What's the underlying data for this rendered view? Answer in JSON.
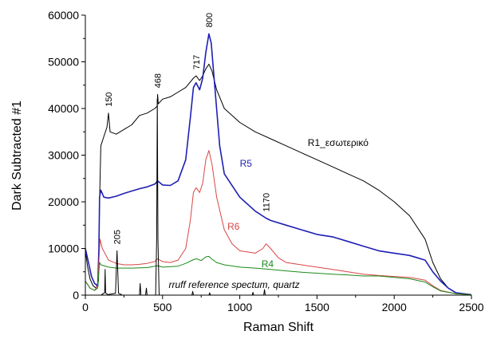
{
  "chart_data": {
    "type": "line",
    "title": "",
    "xlabel": "Raman Shift",
    "ylabel": "Dark Subtracted #1",
    "xlim": [
      0,
      2500
    ],
    "ylim": [
      0,
      60000
    ],
    "x_ticks": [
      0,
      500,
      1000,
      1500,
      2000,
      2500
    ],
    "y_ticks": [
      0,
      10000,
      20000,
      30000,
      40000,
      50000,
      60000
    ],
    "grid": false,
    "legend": "none",
    "series": [
      {
        "name": "R1_εσωτερικό",
        "color": "#000000",
        "points": [
          [
            0,
            9500
          ],
          [
            15,
            6000
          ],
          [
            30,
            3500
          ],
          [
            50,
            2000
          ],
          [
            70,
            1500
          ],
          [
            85,
            3000
          ],
          [
            92,
            20000
          ],
          [
            100,
            32000
          ],
          [
            120,
            34000
          ],
          [
            140,
            36000
          ],
          [
            150,
            39000
          ],
          [
            160,
            35000
          ],
          [
            200,
            34500
          ],
          [
            250,
            35500
          ],
          [
            300,
            36500
          ],
          [
            350,
            38500
          ],
          [
            400,
            39000
          ],
          [
            450,
            40000
          ],
          [
            465,
            40500
          ],
          [
            468,
            43000
          ],
          [
            472,
            41000
          ],
          [
            500,
            42000
          ],
          [
            550,
            42500
          ],
          [
            600,
            43500
          ],
          [
            650,
            44500
          ],
          [
            700,
            46500
          ],
          [
            717,
            47000
          ],
          [
            740,
            46000
          ],
          [
            760,
            47000
          ],
          [
            780,
            48500
          ],
          [
            800,
            49500
          ],
          [
            820,
            48000
          ],
          [
            850,
            44000
          ],
          [
            900,
            40000
          ],
          [
            1000,
            37000
          ],
          [
            1100,
            35000
          ],
          [
            1200,
            33500
          ],
          [
            1300,
            32000
          ],
          [
            1400,
            30500
          ],
          [
            1500,
            29000
          ],
          [
            1600,
            27500
          ],
          [
            1700,
            26000
          ],
          [
            1800,
            24500
          ],
          [
            1900,
            22500
          ],
          [
            2000,
            20000
          ],
          [
            2100,
            17000
          ],
          [
            2200,
            12000
          ],
          [
            2250,
            7000
          ],
          [
            2300,
            3500
          ],
          [
            2350,
            1500
          ],
          [
            2400,
            500
          ],
          [
            2450,
            200
          ],
          [
            2500,
            100
          ]
        ]
      },
      {
        "name": "R5",
        "color": "#1f1fb4",
        "points": [
          [
            0,
            10000
          ],
          [
            20,
            7000
          ],
          [
            40,
            4000
          ],
          [
            60,
            2500
          ],
          [
            80,
            2000
          ],
          [
            88,
            10000
          ],
          [
            92,
            21000
          ],
          [
            100,
            22500
          ],
          [
            120,
            21000
          ],
          [
            150,
            20800
          ],
          [
            200,
            21200
          ],
          [
            250,
            21800
          ],
          [
            300,
            22300
          ],
          [
            350,
            22800
          ],
          [
            400,
            23200
          ],
          [
            450,
            23800
          ],
          [
            468,
            24500
          ],
          [
            500,
            23600
          ],
          [
            550,
            23500
          ],
          [
            600,
            24500
          ],
          [
            650,
            29000
          ],
          [
            680,
            38000
          ],
          [
            700,
            44500
          ],
          [
            717,
            45500
          ],
          [
            740,
            44000
          ],
          [
            760,
            46500
          ],
          [
            780,
            52000
          ],
          [
            800,
            56000
          ],
          [
            815,
            54000
          ],
          [
            840,
            44000
          ],
          [
            870,
            32000
          ],
          [
            900,
            26000
          ],
          [
            1000,
            21000
          ],
          [
            1100,
            18000
          ],
          [
            1170,
            16500
          ],
          [
            1200,
            16000
          ],
          [
            1300,
            15000
          ],
          [
            1400,
            14000
          ],
          [
            1500,
            13000
          ],
          [
            1600,
            12500
          ],
          [
            1700,
            11500
          ],
          [
            1800,
            10500
          ],
          [
            1900,
            9500
          ],
          [
            2000,
            9000
          ],
          [
            2100,
            8500
          ],
          [
            2150,
            8000
          ],
          [
            2200,
            7500
          ],
          [
            2250,
            5000
          ],
          [
            2300,
            3000
          ],
          [
            2350,
            1500
          ],
          [
            2400,
            500
          ],
          [
            2500,
            100
          ]
        ]
      },
      {
        "name": "R6",
        "color": "#d94646",
        "points": [
          [
            0,
            3000
          ],
          [
            30,
            1500
          ],
          [
            60,
            1000
          ],
          [
            80,
            2000
          ],
          [
            95,
            12000
          ],
          [
            110,
            10000
          ],
          [
            150,
            7500
          ],
          [
            200,
            6800
          ],
          [
            250,
            6500
          ],
          [
            300,
            6500
          ],
          [
            350,
            6600
          ],
          [
            400,
            6800
          ],
          [
            450,
            7200
          ],
          [
            468,
            7800
          ],
          [
            500,
            7200
          ],
          [
            550,
            7000
          ],
          [
            600,
            7500
          ],
          [
            650,
            10000
          ],
          [
            680,
            16000
          ],
          [
            700,
            22000
          ],
          [
            717,
            23000
          ],
          [
            740,
            22000
          ],
          [
            760,
            24000
          ],
          [
            780,
            29000
          ],
          [
            800,
            31000
          ],
          [
            820,
            28000
          ],
          [
            850,
            21000
          ],
          [
            900,
            14000
          ],
          [
            950,
            11000
          ],
          [
            1000,
            9500
          ],
          [
            1100,
            9000
          ],
          [
            1150,
            10000
          ],
          [
            1170,
            11000
          ],
          [
            1200,
            10000
          ],
          [
            1250,
            8000
          ],
          [
            1300,
            7000
          ],
          [
            1400,
            6500
          ],
          [
            1500,
            6000
          ],
          [
            1600,
            5500
          ],
          [
            1700,
            5000
          ],
          [
            1800,
            4500
          ],
          [
            1900,
            4200
          ],
          [
            2000,
            4000
          ],
          [
            2100,
            3800
          ],
          [
            2200,
            3200
          ],
          [
            2250,
            2000
          ],
          [
            2300,
            1000
          ],
          [
            2400,
            300
          ],
          [
            2500,
            100
          ]
        ]
      },
      {
        "name": "R4",
        "color": "#1a8a1a",
        "points": [
          [
            0,
            3000
          ],
          [
            30,
            1500
          ],
          [
            60,
            1000
          ],
          [
            80,
            1500
          ],
          [
            92,
            7000
          ],
          [
            100,
            6500
          ],
          [
            150,
            6000
          ],
          [
            200,
            5800
          ],
          [
            300,
            5800
          ],
          [
            400,
            5900
          ],
          [
            468,
            6300
          ],
          [
            500,
            6000
          ],
          [
            600,
            6200
          ],
          [
            650,
            6800
          ],
          [
            700,
            7600
          ],
          [
            720,
            7800
          ],
          [
            750,
            7400
          ],
          [
            780,
            8200
          ],
          [
            800,
            8300
          ],
          [
            820,
            7700
          ],
          [
            850,
            7000
          ],
          [
            900,
            6500
          ],
          [
            1000,
            6000
          ],
          [
            1100,
            5800
          ],
          [
            1200,
            5500
          ],
          [
            1300,
            5200
          ],
          [
            1400,
            4900
          ],
          [
            1500,
            4700
          ],
          [
            1600,
            4500
          ],
          [
            1700,
            4300
          ],
          [
            1800,
            4100
          ],
          [
            1900,
            4100
          ],
          [
            2000,
            3800
          ],
          [
            2100,
            3500
          ],
          [
            2200,
            2800
          ],
          [
            2250,
            1800
          ],
          [
            2300,
            900
          ],
          [
            2400,
            300
          ],
          [
            2500,
            100
          ]
        ]
      },
      {
        "name": "rruff reference spectum, quartz",
        "color": "#000000",
        "points": [
          [
            0,
            0
          ],
          [
            60,
            0
          ],
          [
            100,
            0
          ],
          [
            125,
            500
          ],
          [
            128,
            5500
          ],
          [
            131,
            500
          ],
          [
            145,
            100
          ],
          [
            195,
            400
          ],
          [
            205,
            9500
          ],
          [
            215,
            400
          ],
          [
            240,
            0
          ],
          [
            350,
            0
          ],
          [
            355,
            2500
          ],
          [
            360,
            0
          ],
          [
            390,
            0
          ],
          [
            395,
            1500
          ],
          [
            400,
            0
          ],
          [
            455,
            0
          ],
          [
            462,
            12000
          ],
          [
            466,
            42000
          ],
          [
            470,
            12000
          ],
          [
            478,
            0
          ],
          [
            690,
            0
          ],
          [
            695,
            800
          ],
          [
            700,
            0
          ],
          [
            800,
            0
          ],
          [
            805,
            500
          ],
          [
            810,
            0
          ],
          [
            1080,
            0
          ],
          [
            1085,
            600
          ],
          [
            1090,
            0
          ],
          [
            1155,
            0
          ],
          [
            1160,
            1200
          ],
          [
            1165,
            0
          ],
          [
            1500,
            0
          ],
          [
            2000,
            0
          ]
        ]
      }
    ],
    "peak_labels": [
      {
        "text": "150",
        "x": 150,
        "y": 39000
      },
      {
        "text": "468",
        "x": 468,
        "y": 43000
      },
      {
        "text": "717",
        "x": 717,
        "y": 47000
      },
      {
        "text": "800",
        "x": 800,
        "y": 56000
      },
      {
        "text": "1170",
        "x": 1170,
        "y": 16500
      },
      {
        "text": "205",
        "x": 205,
        "y": 9500
      }
    ],
    "series_labels": [
      {
        "text": "R1_εσωτερικό",
        "x": 1440,
        "y": 32000
      },
      {
        "text": "R5",
        "x": 1000,
        "y": 27500
      },
      {
        "text": "R6",
        "x": 920,
        "y": 14000
      },
      {
        "text": "R4",
        "x": 1140,
        "y": 6000
      },
      {
        "text": "rruff reference spectum, quartz",
        "x": 540,
        "y": 1500
      }
    ]
  }
}
